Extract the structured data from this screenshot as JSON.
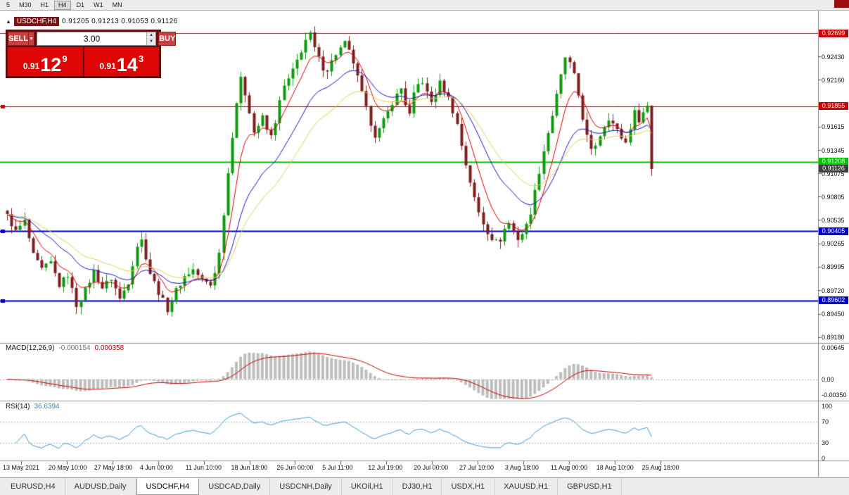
{
  "toolbar": {
    "timeframes": [
      "5",
      "M30",
      "H1",
      "H4",
      "D1",
      "W1",
      "MN"
    ],
    "active_timeframe": "H4"
  },
  "chart_header": {
    "symbol": "USDCHF,H4",
    "ohlc": "0.91205 0.91213 0.91053 0.91126"
  },
  "trade_panel": {
    "sell_label": "SELL",
    "buy_label": "BUY",
    "volume": "3.00",
    "bid": {
      "prefix": "0.91",
      "big": "12",
      "sup": "9"
    },
    "ask": {
      "prefix": "0.91",
      "big": "14",
      "sup": "3"
    }
  },
  "hlines": [
    {
      "price": 0.92699,
      "label": "0.92699",
      "color": "#cc0000",
      "width": 1,
      "anchor": false
    },
    {
      "price": 0.91855,
      "label": "0.91855",
      "color": "#cc0000",
      "width": 1,
      "anchor": true
    },
    {
      "price": 0.91208,
      "label": "0.91208",
      "color": "#00c000",
      "width": 2,
      "anchor": false
    },
    {
      "price": 0.90405,
      "label": "0.90405",
      "color": "#0000c8",
      "width": 2,
      "anchor": true
    },
    {
      "price": 0.89602,
      "label": "0.89602",
      "color": "#0000c8",
      "width": 2,
      "anchor": true
    }
  ],
  "bid_badge": {
    "price": 0.91126,
    "label": "0.91126",
    "color": "#3f3f3f"
  },
  "price_scale": {
    "ticks": [
      0.9243,
      0.9216,
      0.91615,
      0.91345,
      0.91075,
      0.90805,
      0.90535,
      0.90265,
      0.89995,
      0.8972,
      0.8945,
      0.8918
    ],
    "labels": [
      "0.92430",
      "0.92160",
      "0.91615",
      "0.91345",
      "0.91075",
      "0.90805",
      "0.90535",
      "0.90265",
      "0.89995",
      "0.89720",
      "0.89450",
      "0.89180"
    ]
  },
  "time_scale": [
    "13 May 2021",
    "20 May 10:00",
    "27 May 18:00",
    "4 Jun 00:00",
    "11 Jun 10:00",
    "18 Jun 18:00",
    "26 Jun 00:00",
    "5 Jul 11:00",
    "12 Jul 19:00",
    "20 Jul 00:00",
    "27 Jul 10:00",
    "3 Aug 18:00",
    "11 Aug 00:00",
    "18 Aug 10:00",
    "25 Aug 18:00"
  ],
  "macd_panel": {
    "label": "MACD(12,26,9)",
    "value_main": "-0.000154",
    "value_signal": "0.000358",
    "axis": [
      "0.00645",
      "0.00",
      "-0.00350"
    ],
    "params": {
      "fast": 12,
      "slow": 26,
      "signal": 9
    },
    "scale_max": 0.00645,
    "scale_min": -0.0035
  },
  "rsi_panel": {
    "label": "RSI(14)",
    "value": "36.6394",
    "axis": [
      "100",
      "70",
      "30",
      "0"
    ],
    "period": 14,
    "levels": [
      70,
      30
    ]
  },
  "tabs": [
    "EURUSD,H4",
    "AUDUSD,Daily",
    "USDCHF,H4",
    "USDCAD,Daily",
    "USDCNH,Daily",
    "UKOil,H1",
    "DJ30,H1",
    "USDX,H1",
    "XAUUSD,H1",
    "GBPUSD,H1"
  ],
  "active_tab": "USDCHF,H4",
  "colors": {
    "up": "#0f9b0f",
    "down": "#7d1f1f",
    "macd_hist": "#bdbdbd",
    "macd_signal": "#cc0000",
    "rsi_line": "#3c9cd7",
    "rsi_levels": "#b4b4b4"
  },
  "chart_data": {
    "type": "candlestick",
    "symbol": "USDCHF",
    "timeframe": "H4",
    "title": "USDCHF,H4",
    "bars": 150,
    "view": {
      "price_top": 0.9296,
      "price_bottom": 0.8912
    },
    "close_waypoints": [
      [
        0,
        0.9058
      ],
      [
        2,
        0.904
      ],
      [
        4,
        0.9052
      ],
      [
        6,
        0.9012
      ],
      [
        8,
        0.8996
      ],
      [
        10,
        0.9004
      ],
      [
        12,
        0.8978
      ],
      [
        14,
        0.899
      ],
      [
        16,
        0.8955
      ],
      [
        18,
        0.8972
      ],
      [
        20,
        0.8994
      ],
      [
        22,
        0.8975
      ],
      [
        24,
        0.8986
      ],
      [
        26,
        0.8962
      ],
      [
        28,
        0.8982
      ],
      [
        30,
        0.9024
      ],
      [
        31,
        0.903
      ],
      [
        33,
        0.8992
      ],
      [
        35,
        0.897
      ],
      [
        37,
        0.895
      ],
      [
        39,
        0.8972
      ],
      [
        41,
        0.8988
      ],
      [
        43,
        0.8996
      ],
      [
        45,
        0.8984
      ],
      [
        47,
        0.8978
      ],
      [
        48,
        0.8994
      ],
      [
        49,
        0.9015
      ],
      [
        50,
        0.9062
      ],
      [
        51,
        0.9108
      ],
      [
        52,
        0.9152
      ],
      [
        53,
        0.919
      ],
      [
        54,
        0.9216
      ],
      [
        55,
        0.92
      ],
      [
        56,
        0.918
      ],
      [
        57,
        0.9155
      ],
      [
        58,
        0.9163
      ],
      [
        59,
        0.9172
      ],
      [
        60,
        0.9158
      ],
      [
        61,
        0.915
      ],
      [
        62,
        0.9168
      ],
      [
        63,
        0.919
      ],
      [
        64,
        0.9208
      ],
      [
        65,
        0.9216
      ],
      [
        66,
        0.9226
      ],
      [
        67,
        0.9238
      ],
      [
        68,
        0.925
      ],
      [
        69,
        0.9262
      ],
      [
        70,
        0.9268
      ],
      [
        71,
        0.9252
      ],
      [
        72,
        0.924
      ],
      [
        73,
        0.923
      ],
      [
        74,
        0.9228
      ],
      [
        76,
        0.9246
      ],
      [
        78,
        0.9258
      ],
      [
        79,
        0.9248
      ],
      [
        80,
        0.9236
      ],
      [
        81,
        0.9218
      ],
      [
        82,
        0.92
      ],
      [
        83,
        0.9182
      ],
      [
        84,
        0.9166
      ],
      [
        85,
        0.9152
      ],
      [
        86,
        0.9158
      ],
      [
        87,
        0.9168
      ],
      [
        88,
        0.9178
      ],
      [
        89,
        0.919
      ],
      [
        90,
        0.9198
      ],
      [
        91,
        0.9206
      ],
      [
        92,
        0.9188
      ],
      [
        93,
        0.9175
      ],
      [
        94,
        0.9198
      ],
      [
        95,
        0.921
      ],
      [
        96,
        0.9214
      ],
      [
        97,
        0.92
      ],
      [
        98,
        0.919
      ],
      [
        99,
        0.92
      ],
      [
        100,
        0.9212
      ],
      [
        101,
        0.9204
      ],
      [
        102,
        0.9194
      ],
      [
        103,
        0.918
      ],
      [
        104,
        0.9164
      ],
      [
        105,
        0.914
      ],
      [
        106,
        0.9118
      ],
      [
        107,
        0.9098
      ],
      [
        108,
        0.9078
      ],
      [
        109,
        0.9062
      ],
      [
        110,
        0.905
      ],
      [
        111,
        0.904
      ],
      [
        112,
        0.9033
      ],
      [
        113,
        0.9028
      ],
      [
        114,
        0.9031
      ],
      [
        115,
        0.9043
      ],
      [
        116,
        0.905
      ],
      [
        117,
        0.904
      ],
      [
        118,
        0.9032
      ],
      [
        119,
        0.9038
      ],
      [
        120,
        0.9047
      ],
      [
        121,
        0.9063
      ],
      [
        122,
        0.9086
      ],
      [
        123,
        0.911
      ],
      [
        124,
        0.9134
      ],
      [
        125,
        0.9155
      ],
      [
        126,
        0.9175
      ],
      [
        127,
        0.9197
      ],
      [
        128,
        0.922
      ],
      [
        129,
        0.9242
      ],
      [
        130,
        0.9234
      ],
      [
        131,
        0.922
      ],
      [
        132,
        0.9198
      ],
      [
        133,
        0.9172
      ],
      [
        134,
        0.915
      ],
      [
        135,
        0.9133
      ],
      [
        136,
        0.9141
      ],
      [
        137,
        0.9152
      ],
      [
        138,
        0.9163
      ],
      [
        139,
        0.9172
      ],
      [
        140,
        0.9165
      ],
      [
        141,
        0.9157
      ],
      [
        142,
        0.9149
      ],
      [
        143,
        0.9143
      ],
      [
        144,
        0.9161
      ],
      [
        145,
        0.9178
      ],
      [
        146,
        0.917
      ],
      [
        147,
        0.9178
      ],
      [
        148,
        0.9186
      ],
      [
        149,
        0.91126
      ]
    ],
    "noise": {
      "body": 0.0007,
      "wick": 0.0009
    },
    "moving_averages": [
      {
        "period": 7,
        "color": "#dd0000"
      },
      {
        "period": 18,
        "color": "#1414cc"
      },
      {
        "period": 28,
        "color": "#e3cf57"
      }
    ],
    "horizontal_levels": [
      0.92699,
      0.91855,
      0.91208,
      0.90405,
      0.89602
    ],
    "last_close": 0.91126
  }
}
